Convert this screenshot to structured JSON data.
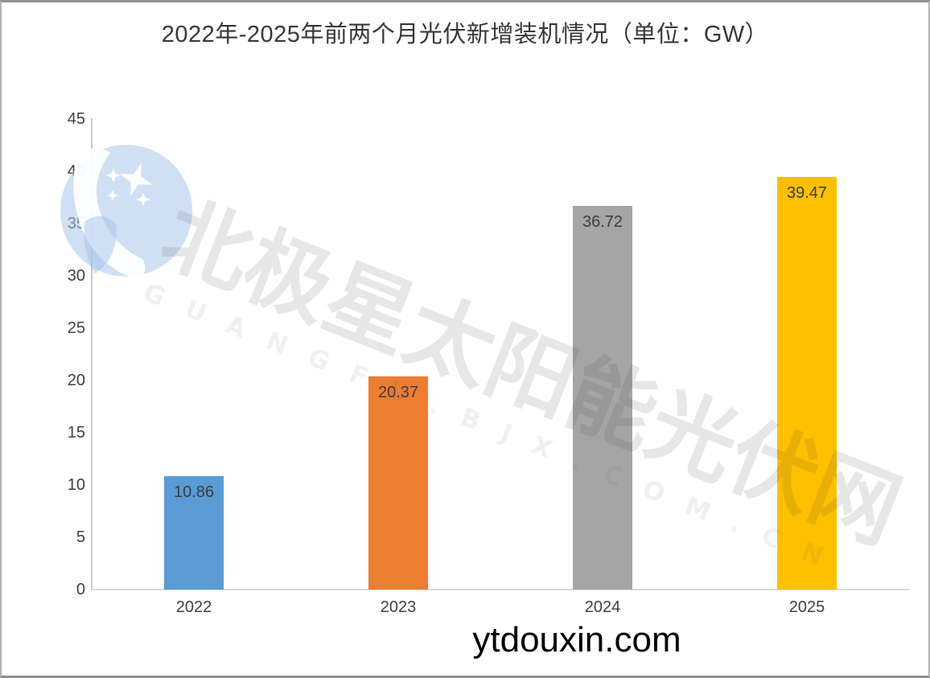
{
  "chart_data": {
    "type": "bar",
    "title": "2022年-2025年前两个月光伏新增装机情况（单位：GW）",
    "unit": "GW",
    "categories": [
      "2022",
      "2023",
      "2024",
      "2025"
    ],
    "values": [
      10.86,
      20.37,
      36.72,
      39.47
    ],
    "value_labels": [
      "10.86",
      "20.37",
      "36.72",
      "39.47"
    ],
    "bar_colors": [
      "#5B9BD5",
      "#ED7D31",
      "#A5A5A5",
      "#FFC000"
    ],
    "xlabel": "",
    "ylabel": "",
    "ylim": [
      0,
      45
    ],
    "yticks": [
      0,
      5,
      10,
      15,
      20,
      25,
      30,
      35,
      40,
      45
    ],
    "grid": false,
    "legend": "none",
    "value_labels_position": "inside-top",
    "axis_color": "#c9c9c9",
    "baseline_color": "#d9d9d9",
    "tick_label_color": "#404040",
    "value_label_color": "#3d3d3d"
  },
  "watermark": {
    "cn_text": "北极星太阳能光伏网",
    "en_text": "GUANGFU.BJX.COM.CN",
    "logo_icon": "bjx-star-moon-logo",
    "cn_color": "rgba(70,70,70,0.13)",
    "en_color": "rgba(110,110,110,0.10)",
    "logo_blue": "rgba(164,196,233,0.52)",
    "logo_white": "rgba(255,255,255,0.92)"
  },
  "footer": {
    "site_text": "ytdouxin.com"
  }
}
